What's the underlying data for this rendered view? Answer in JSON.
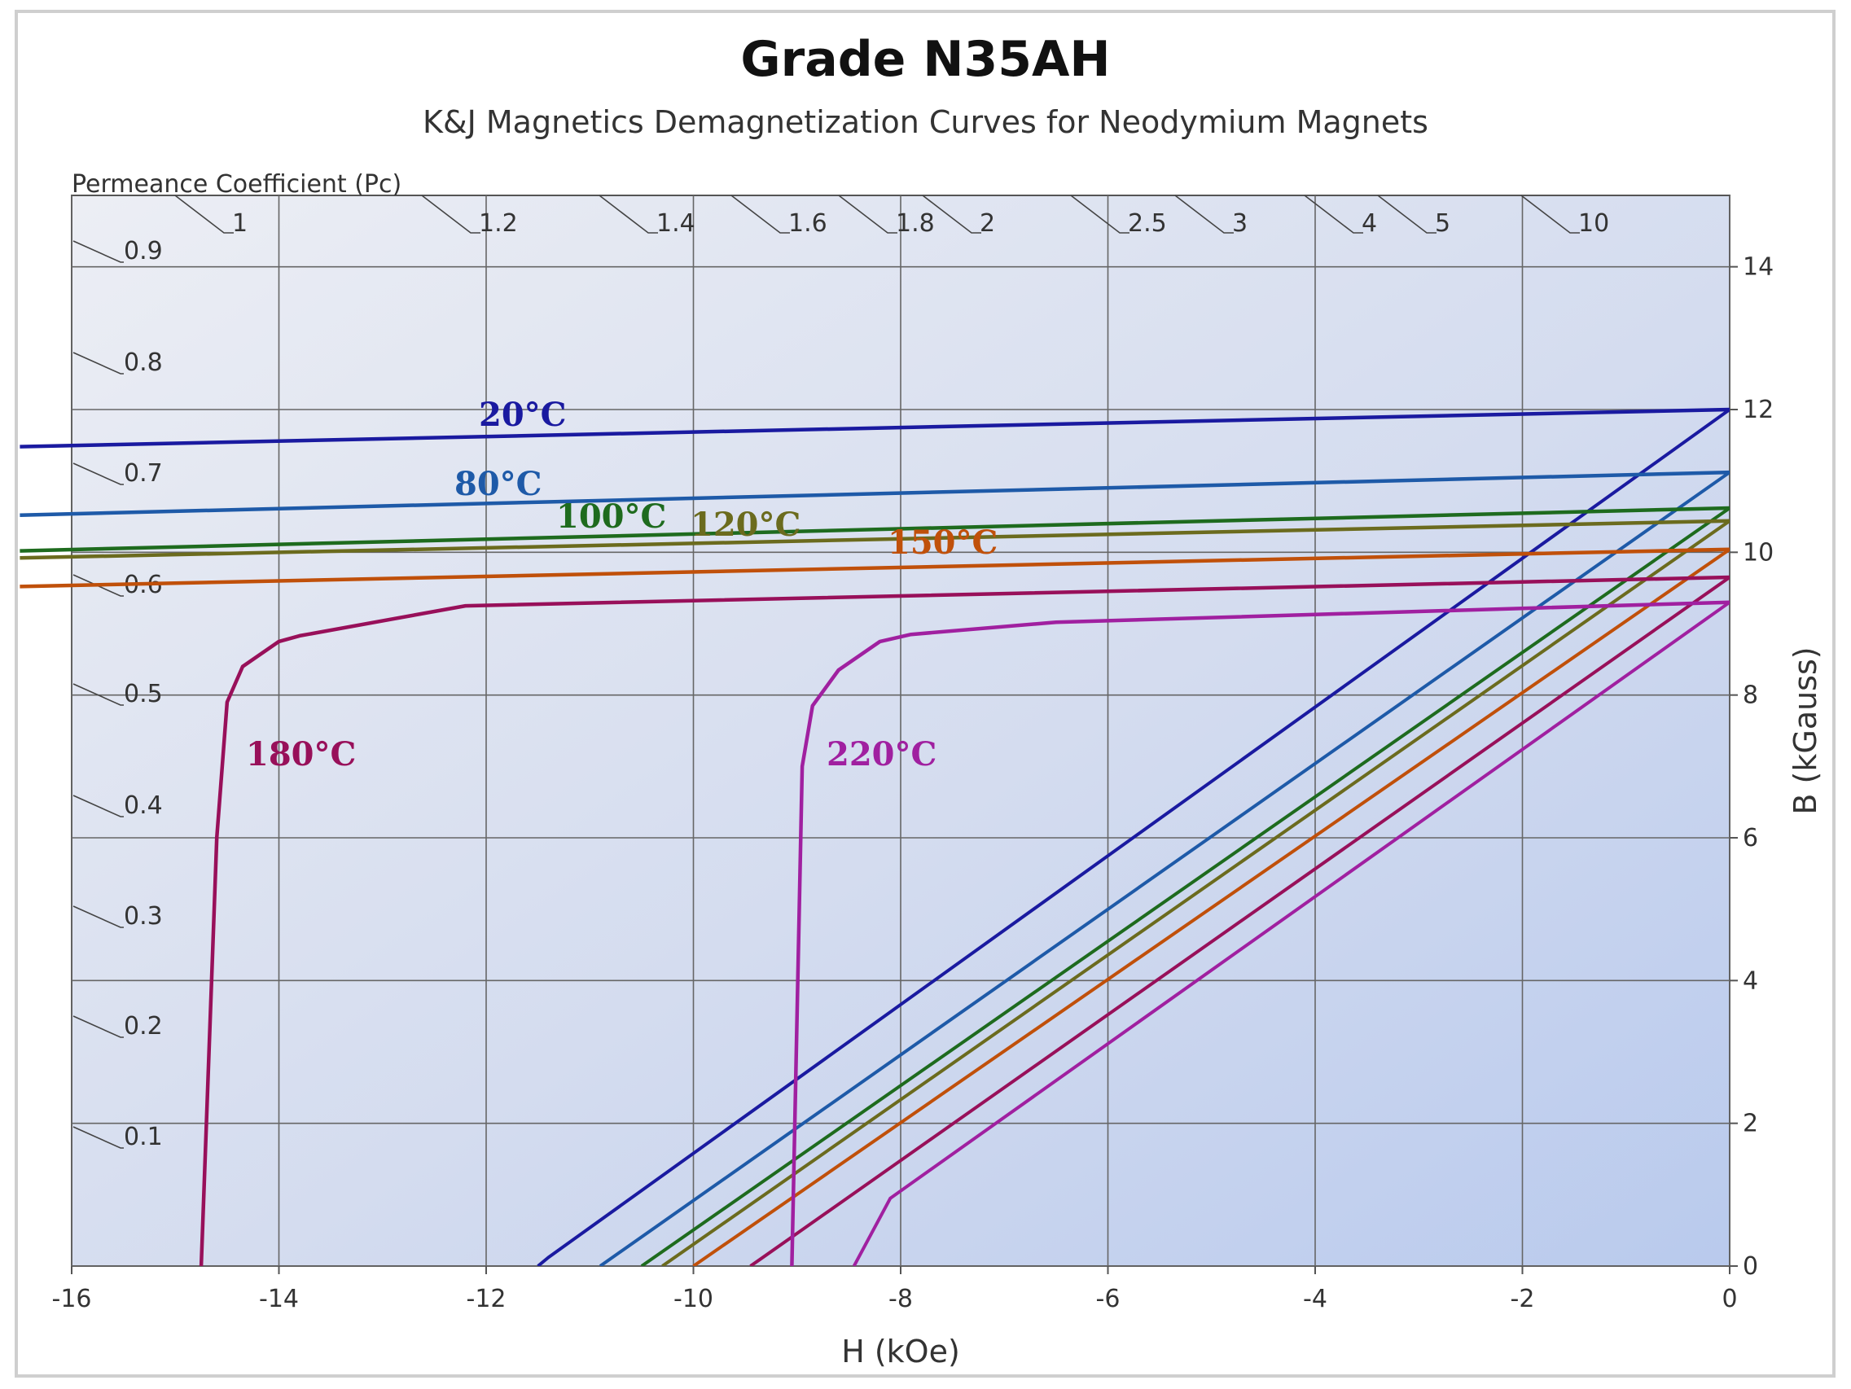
{
  "title": "Grade N35AH",
  "subtitle": "K&J Magnetics Demagnetization Curves for Neodymium Magnets",
  "chart_data": {
    "type": "line",
    "title": "Grade N35AH",
    "subtitle": "K&J Magnetics Demagnetization Curves for Neodymium Magnets",
    "xlabel": "H (kOe)",
    "ylabel": "B (kGauss)",
    "xlim": [
      -16,
      0
    ],
    "ylim": [
      0,
      15
    ],
    "xticks": [
      -16,
      -14,
      -12,
      -10,
      -8,
      -6,
      -4,
      -2,
      0
    ],
    "yticks": [
      0,
      2,
      4,
      6,
      8,
      10,
      12,
      14
    ],
    "pc_axis": {
      "label": "Permeance Coefficient (Pc)",
      "top_values": [
        "1",
        "1.2",
        "1.4",
        "1.6",
        "1.8",
        "2",
        "2.5",
        "3",
        "4",
        "5",
        "10"
      ],
      "left_values": [
        "0.9",
        "0.8",
        "0.7",
        "0.6",
        "0.5",
        "0.4",
        "0.3",
        "0.2",
        "0.1"
      ]
    },
    "series": [
      {
        "name": "20°C",
        "label": "20°C",
        "color": "#1a1aa0",
        "points": [
          [
            -16.5,
            11.48
          ],
          [
            0,
            12.0
          ]
        ],
        "recoil": [
          [
            -11.5,
            0
          ],
          [
            -11.4,
            0.12
          ],
          [
            0,
            12.0
          ]
        ]
      },
      {
        "name": "80°C",
        "label": "80°C",
        "color": "#1e5aa8",
        "points": [
          [
            -16.5,
            10.52
          ],
          [
            0,
            11.12
          ]
        ],
        "recoil": [
          [
            -10.9,
            0
          ],
          [
            0,
            11.12
          ]
        ]
      },
      {
        "name": "100°C",
        "label": "100°C",
        "color": "#1e6b1e",
        "points": [
          [
            -16.5,
            10.02
          ],
          [
            0,
            10.62
          ]
        ],
        "recoil": [
          [
            -10.5,
            0
          ],
          [
            0,
            10.62
          ]
        ]
      },
      {
        "name": "120°C",
        "label": "120°C",
        "color": "#6b6b1e",
        "points": [
          [
            -16.5,
            9.92
          ],
          [
            0,
            10.44
          ]
        ],
        "recoil": [
          [
            -10.3,
            0
          ],
          [
            0,
            10.44
          ]
        ]
      },
      {
        "name": "150°C",
        "label": "150°C",
        "color": "#c0500a",
        "points": [
          [
            -16.5,
            9.52
          ],
          [
            0,
            10.04
          ]
        ],
        "recoil": [
          [
            -10.0,
            0
          ],
          [
            0,
            10.04
          ]
        ]
      },
      {
        "name": "180°C",
        "label": "180°C",
        "color": "#98105a",
        "points": [
          [
            -14.75,
            0
          ],
          [
            -14.6,
            6.0
          ],
          [
            -14.5,
            7.9
          ],
          [
            -14.35,
            8.4
          ],
          [
            -14.0,
            8.75
          ],
          [
            -13.8,
            8.83
          ],
          [
            -12.2,
            9.25
          ],
          [
            0,
            9.65
          ]
        ],
        "recoil": [
          [
            -9.45,
            0
          ],
          [
            -9.35,
            0.1
          ],
          [
            0,
            9.65
          ]
        ]
      },
      {
        "name": "220°C",
        "label": "220°C",
        "color": "#a020a0",
        "points": [
          [
            -9.05,
            0
          ],
          [
            -8.95,
            7.0
          ],
          [
            -8.85,
            7.85
          ],
          [
            -8.6,
            8.35
          ],
          [
            -8.2,
            8.75
          ],
          [
            -7.9,
            8.85
          ],
          [
            -6.5,
            9.02
          ],
          [
            0,
            9.3
          ]
        ],
        "recoil": [
          [
            -8.45,
            0
          ],
          [
            -8.1,
            0.95
          ],
          [
            0,
            9.3
          ]
        ]
      }
    ],
    "grid": true,
    "legend": "inline labels"
  }
}
